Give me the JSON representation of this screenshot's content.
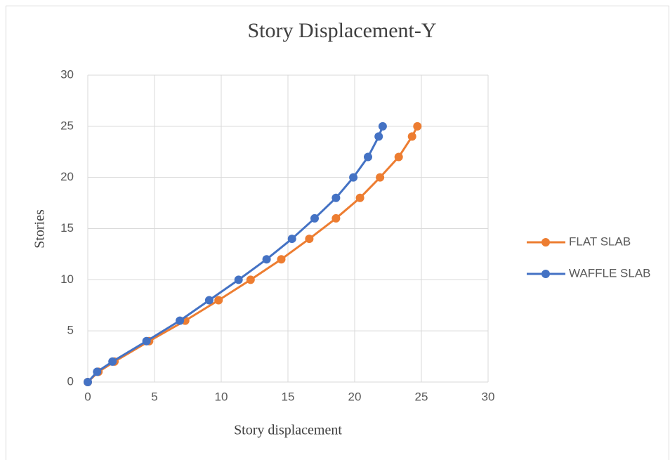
{
  "chart_data": {
    "type": "line",
    "title": "Story Displacement-Y",
    "x_label": "Story displacement",
    "y_label": "Stories",
    "xlim": [
      0,
      30
    ],
    "xticks": [
      0,
      5,
      10,
      15,
      20,
      25,
      30
    ],
    "ylim": [
      0,
      30
    ],
    "yticks": [
      0,
      5,
      10,
      15,
      20,
      25,
      30
    ],
    "grid": true,
    "legend": "right",
    "series": [
      {
        "name": "FLAT SLAB",
        "color": "#ed7d31",
        "x": [
          0,
          0.8,
          2.0,
          4.6,
          7.3,
          9.8,
          12.2,
          14.5,
          16.6,
          18.6,
          20.4,
          21.9,
          23.3,
          24.3,
          24.7
        ],
        "values": [
          0,
          1,
          2,
          4,
          6,
          8,
          10,
          12,
          14,
          16,
          18,
          20,
          22,
          24,
          25
        ]
      },
      {
        "name": "WAFFLE SLAB",
        "color": "#4472c4",
        "x": [
          0,
          0.7,
          1.85,
          4.4,
          6.9,
          9.1,
          11.3,
          13.4,
          15.3,
          17.0,
          18.6,
          19.9,
          21.0,
          21.8,
          22.1
        ],
        "values": [
          0,
          1,
          2,
          4,
          6,
          8,
          10,
          12,
          14,
          16,
          18,
          20,
          22,
          24,
          25
        ]
      }
    ]
  }
}
